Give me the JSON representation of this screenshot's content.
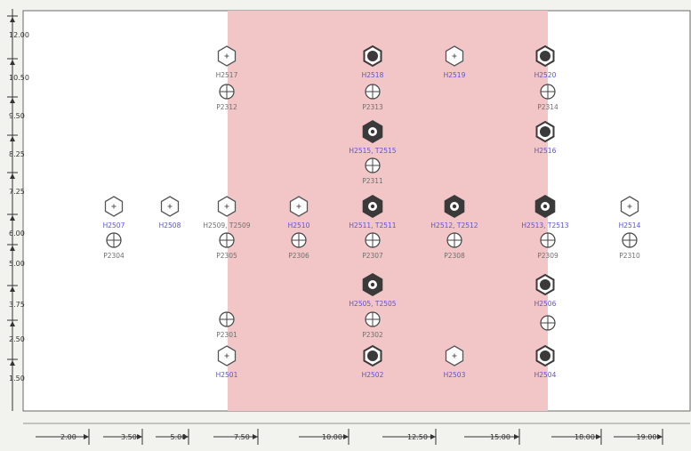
{
  "colors": {
    "background": "#f2f2ee",
    "plot_bg": "#ffffff",
    "highlight_band": "#f2c6c6",
    "frame": "#6a6a6a",
    "ruler": "#333333",
    "label_dark": "#6f6f6f",
    "label_blue": "#5a55c8",
    "hex_fill_dark": "#3a3a3a"
  },
  "vertical_ruler": [
    "12.00",
    "10.50",
    "9.50",
    "8.25",
    "7.25",
    "6.00",
    "5.00",
    "3.75",
    "2.50",
    "1.50"
  ],
  "horizontal_ruler": [
    "2.00",
    "3.50",
    "5.00",
    "7.50",
    "10.00",
    "12.50",
    "15.00",
    "18.00",
    "19.00"
  ],
  "hex_markers": [
    {
      "id": "H2517",
      "label": "H2517",
      "style": "outline-small",
      "color": "dark"
    },
    {
      "id": "H2518",
      "label": "H2518",
      "style": "filled-dot",
      "color": "blue"
    },
    {
      "id": "H2519",
      "label": "H2519",
      "style": "outline-small",
      "color": "blue"
    },
    {
      "id": "H2520",
      "label": "H2520",
      "style": "filled-dot",
      "color": "blue"
    },
    {
      "id": "H2515",
      "label": "H2515, T2515",
      "style": "bold-ring",
      "color": "blue"
    },
    {
      "id": "H2516",
      "label": "H2516",
      "style": "filled-dot",
      "color": "blue"
    },
    {
      "id": "H2507",
      "label": "H2507",
      "style": "outline-small",
      "color": "blue"
    },
    {
      "id": "H2508",
      "label": "H2508",
      "style": "outline-small",
      "color": "blue"
    },
    {
      "id": "H2509",
      "label": "H2509, T2509",
      "style": "outline-small",
      "color": "dark"
    },
    {
      "id": "H2510",
      "label": "H2510",
      "style": "outline-small",
      "color": "blue"
    },
    {
      "id": "H2511",
      "label": "H2511, T2511",
      "style": "bold-ring",
      "color": "blue"
    },
    {
      "id": "H2512",
      "label": "H2512, T2512",
      "style": "bold-ring",
      "color": "blue"
    },
    {
      "id": "H2513",
      "label": "H2513, T2513",
      "style": "bold-ring",
      "color": "blue"
    },
    {
      "id": "H2514",
      "label": "H2514",
      "style": "outline-small",
      "color": "blue"
    },
    {
      "id": "H2505",
      "label": "H2505, T2505",
      "style": "bold-ring",
      "color": "blue"
    },
    {
      "id": "H2506",
      "label": "H2506",
      "style": "filled-dot",
      "color": "blue"
    },
    {
      "id": "H2501",
      "label": "H2501",
      "style": "outline-small",
      "color": "blue"
    },
    {
      "id": "H2502",
      "label": "H2502",
      "style": "filled-dot",
      "color": "blue"
    },
    {
      "id": "H2503",
      "label": "H2503",
      "style": "outline-small",
      "color": "blue"
    },
    {
      "id": "H2504",
      "label": "H2504",
      "style": "filled-dot",
      "color": "blue"
    }
  ],
  "circle_markers": [
    {
      "id": "P2312",
      "label": "P2312"
    },
    {
      "id": "P2313",
      "label": "P2313"
    },
    {
      "id": "P2314",
      "label": "P2314"
    },
    {
      "id": "P2311",
      "label": "P2311"
    },
    {
      "id": "P2304",
      "label": "P2304"
    },
    {
      "id": "P2305",
      "label": "P2305"
    },
    {
      "id": "P2306",
      "label": "P2306"
    },
    {
      "id": "P2307",
      "label": "P2307"
    },
    {
      "id": "P2308",
      "label": "P2308"
    },
    {
      "id": "P2309",
      "label": "P2309"
    },
    {
      "id": "P2310",
      "label": "P2310"
    },
    {
      "id": "P2301",
      "label": "P2301"
    },
    {
      "id": "P2302",
      "label": "P2302"
    },
    {
      "id": "P2306b",
      "label": ""
    }
  ]
}
